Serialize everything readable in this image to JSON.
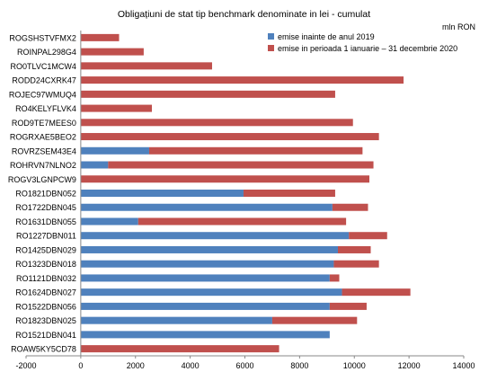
{
  "chart_data": {
    "type": "bar",
    "orientation": "horizontal",
    "stacked": true,
    "title": "Obligațiuni de stat tip benchmark denominate in lei - cumulat",
    "unit_label": "mln RON",
    "xlim": [
      -2000,
      14000
    ],
    "x_ticks": [
      "-2000",
      "0",
      "2000",
      "4000",
      "6000",
      "8000",
      "10000",
      "12000",
      "14000"
    ],
    "grid": false,
    "legend_position": "top-right",
    "categories": [
      "ROGSHSTVFMX2",
      "ROINPAL298G4",
      "RO0TLVC1MCW4",
      "RODD24CXRK47",
      "ROJEC97WMUQ4",
      "RO4KELYFLVK4",
      "ROD9TE7MEES0",
      "ROGRXAE5BEO2",
      "ROVRZSEM43E4",
      "ROHRVN7NLNO2",
      "ROGV3LGNPCW9",
      "RO1821DBN052",
      "RO1722DBN045",
      "RO1631DBN055",
      "RO1227DBN011",
      "RO1425DBN029",
      "RO1323DBN018",
      "RO1121DBN032",
      "RO1624DBN027",
      "RO1522DBN056",
      "RO1823DBN025",
      "RO1521DBN041",
      "ROAW5KY5CD78"
    ],
    "series": [
      {
        "name": "emise inainte de anul 2019",
        "color": "#4F81BD",
        "values": [
          0,
          0,
          0,
          0,
          0,
          0,
          0,
          0,
          2500,
          1000,
          0,
          5950,
          9200,
          2100,
          9800,
          9400,
          9250,
          9100,
          9550,
          9100,
          7000,
          9100,
          0
        ]
      },
      {
        "name": "emise in perioada 1 ianuarie – 31 decembrie 2020",
        "color": "#C0504D",
        "values": [
          1400,
          2300,
          4800,
          11800,
          9300,
          2600,
          9950,
          10900,
          7800,
          9700,
          10550,
          3350,
          1300,
          7600,
          1400,
          1200,
          1650,
          350,
          2500,
          1350,
          3100,
          0,
          7250
        ]
      }
    ]
  }
}
